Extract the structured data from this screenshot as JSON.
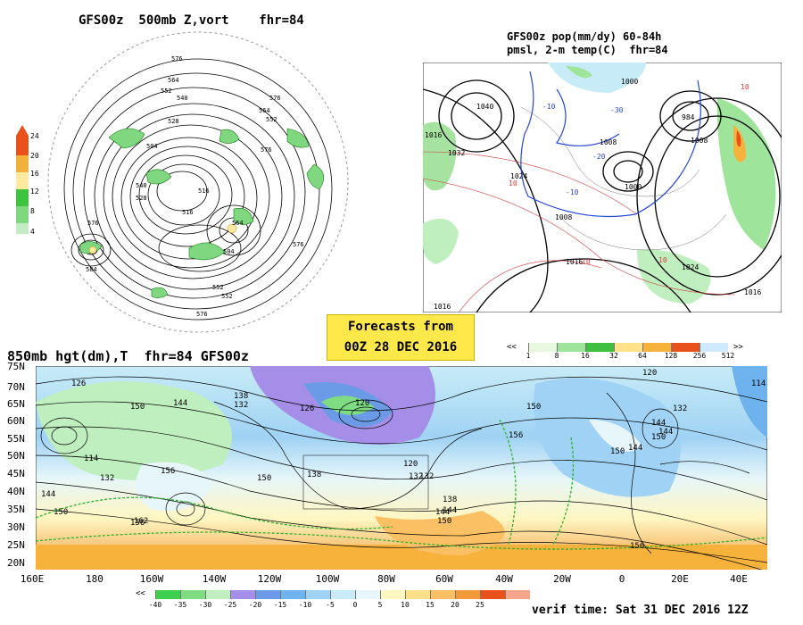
{
  "titles": {
    "vort": "GFS00z  500mb Z,vort    fhr=84",
    "pmsl_line1": "GFS00z pop(mm/dy) 60-84h",
    "pmsl_line2": "pmsl, 2-m temp(C)  fhr=84",
    "hgt850": "850mb hgt(dm),T  fhr=84 GFS00z"
  },
  "forecast_box": {
    "line1": "Forecasts from",
    "line2": "00Z 28 DEC 2016"
  },
  "verif_time": "verif time: Sat 31 DEC 2016 12Z",
  "vort_colorbar": {
    "ticks": [
      "24",
      "20",
      "16",
      "12",
      "8",
      "4"
    ],
    "colors": [
      "#e8501c",
      "#f1b13b",
      "#ffeaa0",
      "#3fc23f",
      "#7fd87f",
      "#c4ecc4"
    ]
  },
  "pop_colorbar": {
    "ticks": [
      "1",
      "8",
      "16",
      "32",
      "64",
      "128",
      "256",
      "512"
    ],
    "colors": [
      "#e7f7e0",
      "#9ee49a",
      "#3fbf3f",
      "#ffe28a",
      "#f7b23b",
      "#e8501c",
      "#cfe9ff"
    ]
  },
  "temp_colorbar": {
    "ticks": [
      "-40",
      "-35",
      "-30",
      "-25",
      "-20",
      "-15",
      "-10",
      "-5",
      "0",
      "5",
      "10",
      "15",
      "20",
      "25"
    ],
    "colors": [
      "#3fcf4f",
      "#7fdc82",
      "#bfeebf",
      "#a48ee8",
      "#6b9be6",
      "#6fb3ee",
      "#9fd2f4",
      "#c8ecf7",
      "#e6f6fa",
      "#fff7c2",
      "#ffe08a",
      "#fbc063",
      "#f2993a",
      "#e8501c",
      "#f6a58a"
    ]
  },
  "hemisphere_labels": [
    "576",
    "564",
    "552",
    "540",
    "528",
    "516",
    "504",
    "576",
    "564",
    "552",
    "528",
    "516",
    "504",
    "576",
    "564",
    "552",
    "576",
    "552",
    "584",
    "540",
    "576",
    "576"
  ],
  "pmsl_labels": [
    "1040",
    "1032",
    "1016",
    "1024",
    "1008",
    "1000",
    "984",
    "1008",
    "1016",
    "1016",
    "1016",
    "1024",
    "1008",
    "1000",
    "10",
    "-10",
    "-20",
    "-30",
    "10",
    "-10",
    "10",
    "10"
  ],
  "hgt850_labels": [
    "126",
    "144",
    "150",
    "138",
    "132",
    "126",
    "120",
    "138",
    "150",
    "156",
    "144",
    "132",
    "114",
    "132",
    "144",
    "162",
    "156",
    "150",
    "144",
    "150",
    "138",
    "132",
    "120",
    "150",
    "144",
    "132",
    "120",
    "114",
    "156",
    "150",
    "144",
    "144",
    "156",
    "150"
  ],
  "lat_labels": [
    "75N",
    "70N",
    "65N",
    "60N",
    "55N",
    "50N",
    "45N",
    "40N",
    "35N",
    "30N",
    "25N",
    "20N"
  ],
  "lon_labels": [
    "160E",
    "180",
    "160W",
    "140W",
    "120W",
    "100W",
    "80W",
    "60W",
    "40W",
    "20W",
    "0",
    "20E",
    "40E"
  ]
}
